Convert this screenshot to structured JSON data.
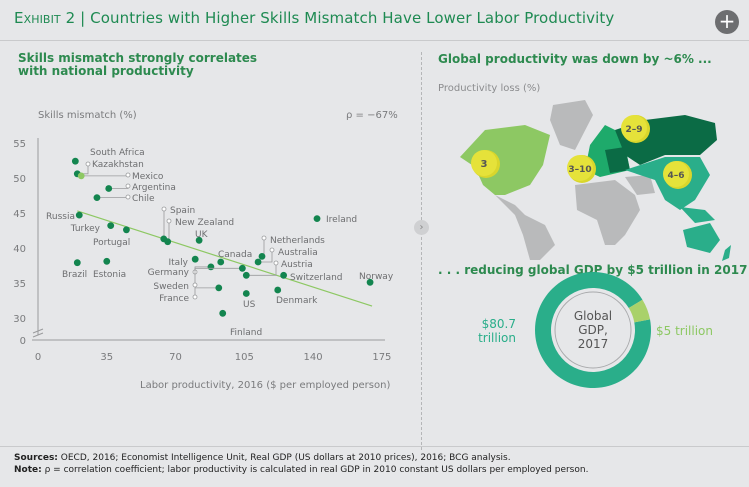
{
  "header": {
    "exhibit": "Exhibit 2",
    "title": "Countries with Higher Skills Mismatch Have Lower Labor Productivity",
    "expand_icon": "plus-circle-icon"
  },
  "left_panel": {
    "subtitle": "Skills mismatch strongly correlates with national productivity",
    "rho_label": "ρ = −67%"
  },
  "right_panel": {
    "map_title": "Global productivity was down by ~6% ...",
    "map_legend": "Productivity loss (%)",
    "regions": [
      {
        "name": "North America",
        "label": "3",
        "color": "#8dc863"
      },
      {
        "name": "Europe",
        "label": "3–10",
        "color": "#1eaa6b"
      },
      {
        "name": "Russia",
        "label": "2–9",
        "color": "#0b6b45"
      },
      {
        "name": "Asia-Pacific",
        "label": "4–6",
        "color": "#2aae8a"
      }
    ],
    "donut_title": ". . . reducing global GDP by $5 trillion in 2017",
    "donut_center": "Global GDP, 2017",
    "donut_slices": [
      {
        "label": "$80.7 trillion",
        "value": 80.7,
        "color": "#2aae8a"
      },
      {
        "label": "$5 trillion",
        "value": 5,
        "color": "#a9d16a"
      }
    ]
  },
  "chart_data": {
    "type": "scatter",
    "xlabel": "Labor productivity, 2016 ($ per employed person)",
    "ylabel": "Skills mismatch (%)",
    "xlim": [
      0,
      175
    ],
    "ylim": [
      0,
      55
    ],
    "y_axis_break": "between 0 and 30",
    "x_ticks": [
      "0",
      "35",
      "70",
      "105",
      "140",
      "175"
    ],
    "y_ticks": [
      "0",
      "30",
      "35",
      "40",
      "45",
      "50",
      "55"
    ],
    "grid": false,
    "annotation": "ρ = −67%",
    "trendline": {
      "x": [
        20,
        170
      ],
      "y": [
        45.3,
        31.7
      ],
      "color": "#8dc863"
    },
    "points": [
      {
        "label": "South Africa",
        "x": 19,
        "y": 52.4
      },
      {
        "label": "Kazakhstan",
        "x": 20,
        "y": 50.6
      },
      {
        "label": "Mexico",
        "x": 22,
        "y": 50.3,
        "highlight": true
      },
      {
        "label": "Argentina",
        "x": 36,
        "y": 48.5
      },
      {
        "label": "Chile",
        "x": 30,
        "y": 47.2
      },
      {
        "label": "Russia",
        "x": 21,
        "y": 44.7
      },
      {
        "label": "Turkey",
        "x": 37,
        "y": 43.2
      },
      {
        "label": "Portugal",
        "x": 45,
        "y": 42.6
      },
      {
        "label": "Spain",
        "x": 64,
        "y": 41.3
      },
      {
        "label": "New Zealand",
        "x": 66,
        "y": 40.9
      },
      {
        "label": "UK",
        "x": 82,
        "y": 41.1
      },
      {
        "label": "Brazil",
        "x": 20,
        "y": 37.9
      },
      {
        "label": "Estonia",
        "x": 35,
        "y": 38.1
      },
      {
        "label": "Italy",
        "x": 80,
        "y": 38.4
      },
      {
        "label": "Canada",
        "x": 93,
        "y": 38.0
      },
      {
        "label": "Germany",
        "x": 88,
        "y": 37.3
      },
      {
        "label": "Sweden",
        "x": 104,
        "y": 37.1
      },
      {
        "label": "Netherlands",
        "x": 114,
        "y": 38.8
      },
      {
        "label": "Australia",
        "x": 112,
        "y": 38.0
      },
      {
        "label": "Austria",
        "x": 106,
        "y": 36.1
      },
      {
        "label": "Switzerland",
        "x": 125,
        "y": 36.1
      },
      {
        "label": "France",
        "x": 92,
        "y": 34.3
      },
      {
        "label": "US",
        "x": 106,
        "y": 33.5
      },
      {
        "label": "Denmark",
        "x": 122,
        "y": 34.0
      },
      {
        "label": "Finland",
        "x": 94,
        "y": 27.5
      },
      {
        "label": "Ireland",
        "x": 142,
        "y": 44.2
      },
      {
        "label": "Norway",
        "x": 169,
        "y": 35.1
      }
    ],
    "colors": {
      "point": "#13854f",
      "highlight": "#8dc863"
    }
  },
  "footer": {
    "sources_label": "Sources:",
    "sources": "OECD, 2016; Economist Intelligence Unit, Real GDP (US dollars at 2010 prices), 2016; BCG analysis.",
    "note_label": "Note:",
    "note": "ρ = correlation coefficient; labor productivity is calculated in real GDP in 2010 constant US dollars per employed person."
  }
}
